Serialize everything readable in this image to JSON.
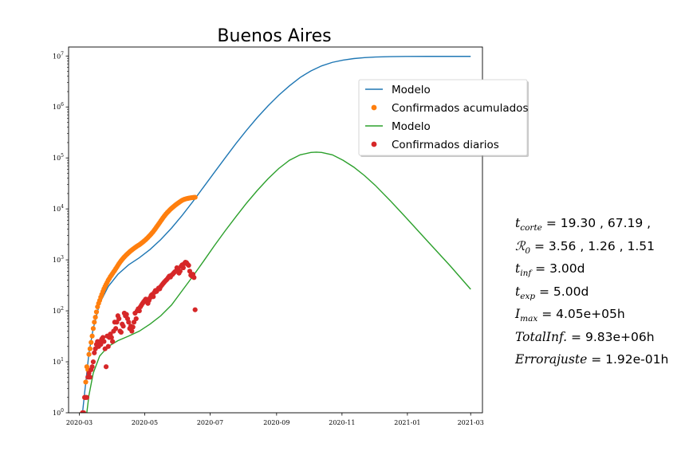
{
  "chart_data": {
    "type": "line",
    "title": "Buenos Aires",
    "yscale": "log",
    "ylim": [
      1,
      15000000
    ],
    "xlim": [
      "2020-02-20",
      "2021-03-12"
    ],
    "x_ticks": [
      "2020-03",
      "2020-05",
      "2020-07",
      "2020-09",
      "2020-11",
      "2021-01",
      "2021-03"
    ],
    "y_ticks": [
      {
        "value": 1,
        "base": "10",
        "exp": "0"
      },
      {
        "value": 10,
        "base": "10",
        "exp": "1"
      },
      {
        "value": 100,
        "base": "10",
        "exp": "2"
      },
      {
        "value": 1000,
        "base": "10",
        "exp": "3"
      },
      {
        "value": 10000,
        "base": "10",
        "exp": "4"
      },
      {
        "value": 100000,
        "base": "10",
        "exp": "5"
      },
      {
        "value": 1000000,
        "base": "10",
        "exp": "6"
      },
      {
        "value": 10000000,
        "base": "10",
        "exp": "7"
      }
    ],
    "legend_position": "upper right",
    "series": [
      {
        "name": "Modelo",
        "kind": "line",
        "color": "#1f77b4",
        "x": [
          "2020-03-04",
          "2020-03-06",
          "2020-03-08",
          "2020-03-10",
          "2020-03-14",
          "2020-03-20",
          "2020-03-28",
          "2020-04-06",
          "2020-04-16",
          "2020-04-26",
          "2020-05-06",
          "2020-05-16",
          "2020-05-26",
          "2020-06-05",
          "2020-06-15",
          "2020-06-25",
          "2020-07-05",
          "2020-07-15",
          "2020-07-25",
          "2020-08-04",
          "2020-08-14",
          "2020-08-24",
          "2020-09-03",
          "2020-09-13",
          "2020-09-23",
          "2020-10-03",
          "2020-10-13",
          "2020-10-23",
          "2020-11-02",
          "2020-11-12",
          "2020-11-22",
          "2020-12-02",
          "2020-12-16",
          "2021-01-01",
          "2021-01-20",
          "2021-02-10",
          "2021-03-01"
        ],
        "y": [
          1,
          2.5,
          6,
          15,
          45,
          140,
          300,
          520,
          800,
          1100,
          1600,
          2500,
          4200,
          7500,
          14000,
          27000,
          52000,
          100000,
          190000,
          350000,
          620000,
          1050000,
          1700000,
          2600000,
          3800000,
          5100000,
          6400000,
          7500000,
          8300000,
          8900000,
          9300000,
          9550000,
          9720000,
          9800000,
          9830000,
          9830000,
          9830000
        ]
      },
      {
        "name": "Confirmados acumulados",
        "kind": "scatter",
        "color": "#ff7f0e",
        "x": [
          "2020-03-04",
          "2020-03-05",
          "2020-03-06",
          "2020-03-07",
          "2020-03-08",
          "2020-03-09",
          "2020-03-10",
          "2020-03-11",
          "2020-03-12",
          "2020-03-13",
          "2020-03-14",
          "2020-03-15",
          "2020-03-16",
          "2020-03-17",
          "2020-03-18",
          "2020-03-19",
          "2020-03-20",
          "2020-03-21",
          "2020-03-22",
          "2020-03-23",
          "2020-03-24",
          "2020-03-25",
          "2020-03-26",
          "2020-03-27",
          "2020-03-28",
          "2020-03-29",
          "2020-03-30",
          "2020-03-31",
          "2020-04-01",
          "2020-04-02",
          "2020-04-03",
          "2020-04-04",
          "2020-04-05",
          "2020-04-06",
          "2020-04-07",
          "2020-04-08",
          "2020-04-09",
          "2020-04-10",
          "2020-04-11",
          "2020-04-12",
          "2020-04-13",
          "2020-04-14",
          "2020-04-15",
          "2020-04-16",
          "2020-04-17",
          "2020-04-18",
          "2020-04-19",
          "2020-04-20",
          "2020-04-21",
          "2020-04-22",
          "2020-04-23",
          "2020-04-24",
          "2020-04-25",
          "2020-04-26",
          "2020-04-27",
          "2020-04-28",
          "2020-04-29",
          "2020-04-30",
          "2020-05-01",
          "2020-05-02",
          "2020-05-03",
          "2020-05-04",
          "2020-05-05",
          "2020-05-06",
          "2020-05-07",
          "2020-05-08",
          "2020-05-09",
          "2020-05-10",
          "2020-05-11",
          "2020-05-12",
          "2020-05-13",
          "2020-05-14",
          "2020-05-15",
          "2020-05-16",
          "2020-05-17",
          "2020-05-18",
          "2020-05-19",
          "2020-05-20",
          "2020-05-21",
          "2020-05-22",
          "2020-05-23",
          "2020-05-24",
          "2020-05-25",
          "2020-05-26",
          "2020-05-27",
          "2020-05-28",
          "2020-05-29",
          "2020-05-30",
          "2020-05-31",
          "2020-06-01",
          "2020-06-02",
          "2020-06-03",
          "2020-06-04",
          "2020-06-05",
          "2020-06-06",
          "2020-06-07",
          "2020-06-08",
          "2020-06-09",
          "2020-06-10",
          "2020-06-11",
          "2020-06-12",
          "2020-06-13",
          "2020-06-14",
          "2020-06-15",
          "2020-06-16",
          "2020-06-17"
        ],
        "y": [
          1,
          1,
          2,
          4,
          8,
          7,
          14,
          18,
          24,
          32,
          45,
          60,
          75,
          95,
          120,
          140,
          160,
          185,
          210,
          240,
          270,
          300,
          330,
          360,
          400,
          430,
          470,
          500,
          540,
          580,
          620,
          670,
          720,
          780,
          840,
          900,
          960,
          1020,
          1080,
          1140,
          1200,
          1260,
          1320,
          1380,
          1440,
          1500,
          1560,
          1620,
          1680,
          1740,
          1800,
          1860,
          1920,
          1980,
          2050,
          2130,
          2210,
          2300,
          2400,
          2500,
          2620,
          2750,
          2900,
          3050,
          3220,
          3400,
          3600,
          3850,
          4100,
          4400,
          4700,
          5050,
          5400,
          5800,
          6200,
          6650,
          7100,
          7550,
          8000,
          8450,
          8900,
          9350,
          9800,
          10250,
          10700,
          11150,
          11600,
          12050,
          12500,
          12950,
          13400,
          13850,
          14300,
          14750,
          15100,
          15400,
          15650,
          15850,
          16050,
          16200,
          16350,
          16500,
          16600,
          16700,
          16800,
          16900
        ]
      },
      {
        "name": "Modelo",
        "kind": "line",
        "color": "#2ca02c",
        "x": [
          "2020-03-06",
          "2020-03-08",
          "2020-03-10",
          "2020-03-14",
          "2020-03-20",
          "2020-03-28",
          "2020-04-06",
          "2020-04-16",
          "2020-04-26",
          "2020-05-06",
          "2020-05-16",
          "2020-05-26",
          "2020-06-05",
          "2020-06-15",
          "2020-06-25",
          "2020-07-05",
          "2020-07-15",
          "2020-07-25",
          "2020-08-04",
          "2020-08-14",
          "2020-08-24",
          "2020-09-03",
          "2020-09-13",
          "2020-09-23",
          "2020-10-03",
          "2020-10-08",
          "2020-10-13",
          "2020-10-23",
          "2020-11-02",
          "2020-11-12",
          "2020-11-22",
          "2020-12-02",
          "2020-12-16",
          "2021-01-01",
          "2021-01-20",
          "2021-02-10",
          "2021-03-01"
        ],
        "y": [
          0.5,
          1,
          2.2,
          6,
          13,
          20,
          26,
          32,
          40,
          55,
          80,
          130,
          250,
          480,
          950,
          1900,
          3700,
          7000,
          13000,
          23000,
          39000,
          62000,
          90000,
          115000,
          128000,
          130000,
          128000,
          115000,
          90000,
          66000,
          45000,
          29000,
          14500,
          6300,
          2300,
          760,
          265
        ]
      },
      {
        "name": "Confirmados diarios",
        "kind": "scatter",
        "color": "#d62728",
        "x": [
          "2020-03-04",
          "2020-03-05",
          "2020-03-06",
          "2020-03-07",
          "2020-03-08",
          "2020-03-09",
          "2020-03-10",
          "2020-03-11",
          "2020-03-12",
          "2020-03-13",
          "2020-03-14",
          "2020-03-15",
          "2020-03-16",
          "2020-03-17",
          "2020-03-18",
          "2020-03-19",
          "2020-03-20",
          "2020-03-21",
          "2020-03-22",
          "2020-03-23",
          "2020-03-24",
          "2020-03-25",
          "2020-03-26",
          "2020-03-27",
          "2020-03-28",
          "2020-03-29",
          "2020-03-30",
          "2020-03-31",
          "2020-04-01",
          "2020-04-02",
          "2020-04-03",
          "2020-04-04",
          "2020-04-05",
          "2020-04-06",
          "2020-04-07",
          "2020-04-08",
          "2020-04-09",
          "2020-04-10",
          "2020-04-11",
          "2020-04-12",
          "2020-04-13",
          "2020-04-14",
          "2020-04-15",
          "2020-04-16",
          "2020-04-17",
          "2020-04-18",
          "2020-04-19",
          "2020-04-20",
          "2020-04-21",
          "2020-04-22",
          "2020-04-23",
          "2020-04-24",
          "2020-04-25",
          "2020-04-26",
          "2020-04-27",
          "2020-04-28",
          "2020-04-29",
          "2020-04-30",
          "2020-05-01",
          "2020-05-02",
          "2020-05-03",
          "2020-05-04",
          "2020-05-05",
          "2020-05-06",
          "2020-05-07",
          "2020-05-08",
          "2020-05-09",
          "2020-05-10",
          "2020-05-11",
          "2020-05-12",
          "2020-05-13",
          "2020-05-14",
          "2020-05-15",
          "2020-05-16",
          "2020-05-17",
          "2020-05-18",
          "2020-05-19",
          "2020-05-20",
          "2020-05-21",
          "2020-05-22",
          "2020-05-23",
          "2020-05-24",
          "2020-05-25",
          "2020-05-26",
          "2020-05-27",
          "2020-05-28",
          "2020-05-29",
          "2020-05-30",
          "2020-05-31",
          "2020-06-01",
          "2020-06-02",
          "2020-06-03",
          "2020-06-04",
          "2020-06-05",
          "2020-06-06",
          "2020-06-07",
          "2020-06-08",
          "2020-06-09",
          "2020-06-10",
          "2020-06-11",
          "2020-06-12",
          "2020-06-13",
          "2020-06-14",
          "2020-06-15",
          "2020-06-16",
          "2020-06-17"
        ],
        "y": [
          1,
          1,
          2,
          2,
          2,
          5,
          6,
          5,
          7,
          8,
          10,
          15,
          18,
          22,
          25,
          20,
          25,
          22,
          28,
          30,
          25,
          18,
          8,
          32,
          20,
          30,
          35,
          30,
          25,
          40,
          60,
          45,
          60,
          80,
          70,
          40,
          38,
          55,
          50,
          90,
          80,
          85,
          70,
          60,
          45,
          50,
          40,
          48,
          60,
          90,
          70,
          100,
          110,
          100,
          120,
          130,
          140,
          150,
          160,
          170,
          150,
          140,
          160,
          180,
          200,
          210,
          190,
          230,
          250,
          240,
          260,
          280,
          270,
          300,
          320,
          340,
          360,
          380,
          400,
          420,
          450,
          480,
          460,
          500,
          520,
          550,
          580,
          600,
          700,
          650,
          550,
          600,
          750,
          800,
          700,
          850,
          900,
          880,
          820,
          780,
          600,
          500,
          480,
          520,
          450,
          105
        ]
      }
    ],
    "annotations": [
      {
        "var": "t",
        "sub": "corte",
        "rhs": "= 19.30 , 67.19 ,"
      },
      {
        "var": "ℛ",
        "sub": "0",
        "rhs": "= 3.56 , 1.26 , 1.51"
      },
      {
        "var": "t",
        "sub": "inf",
        "rhs": "= 3.00d"
      },
      {
        "var": "t",
        "sub": "exp",
        "rhs": "= 5.00d"
      },
      {
        "var": "I",
        "sub": "max",
        "rhs": "= 4.05e+05h"
      },
      {
        "var": "TotalInf.",
        "sub": "",
        "rhs": "= 9.83e+06h"
      },
      {
        "var": "Errorajuste",
        "sub": "",
        "rhs": "= 1.92e-01h"
      }
    ]
  }
}
